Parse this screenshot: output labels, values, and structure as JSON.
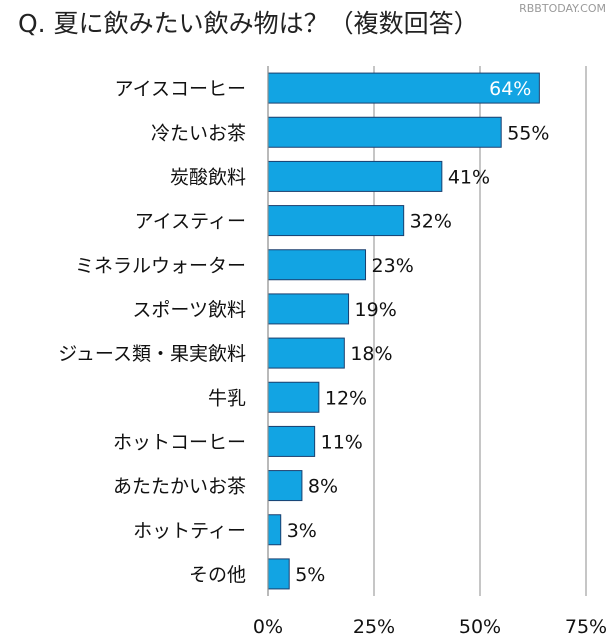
{
  "watermark": "RBBTODAY.COM",
  "chart_data": {
    "type": "bar",
    "orientation": "horizontal",
    "title": "Q. 夏に飲みたい飲み物は？（複数回答）",
    "categories": [
      "アイスコーヒー",
      "冷たいお茶",
      "炭酸飲料",
      "アイスティー",
      "ミネラルウォーター",
      "スポーツ飲料",
      "ジュース類・果実飲料",
      "牛乳",
      "ホットコーヒー",
      "あたたかいお茶",
      "ホットティー",
      "その他"
    ],
    "values": [
      64,
      55,
      41,
      32,
      23,
      19,
      18,
      12,
      11,
      8,
      3,
      5
    ],
    "value_labels": [
      "64%",
      "55%",
      "41%",
      "32%",
      "23%",
      "19%",
      "18%",
      "12%",
      "11%",
      "8%",
      "3%",
      "5%"
    ],
    "xlim": [
      0,
      75
    ],
    "xticks": [
      0,
      25,
      50,
      75
    ],
    "xtick_labels": [
      "0%",
      "25%",
      "50%",
      "75%"
    ],
    "xlabel": "",
    "ylabel": "",
    "grid": true,
    "bar_color": "#12a4e3",
    "bar_edge_color": "#1a3f6e"
  }
}
